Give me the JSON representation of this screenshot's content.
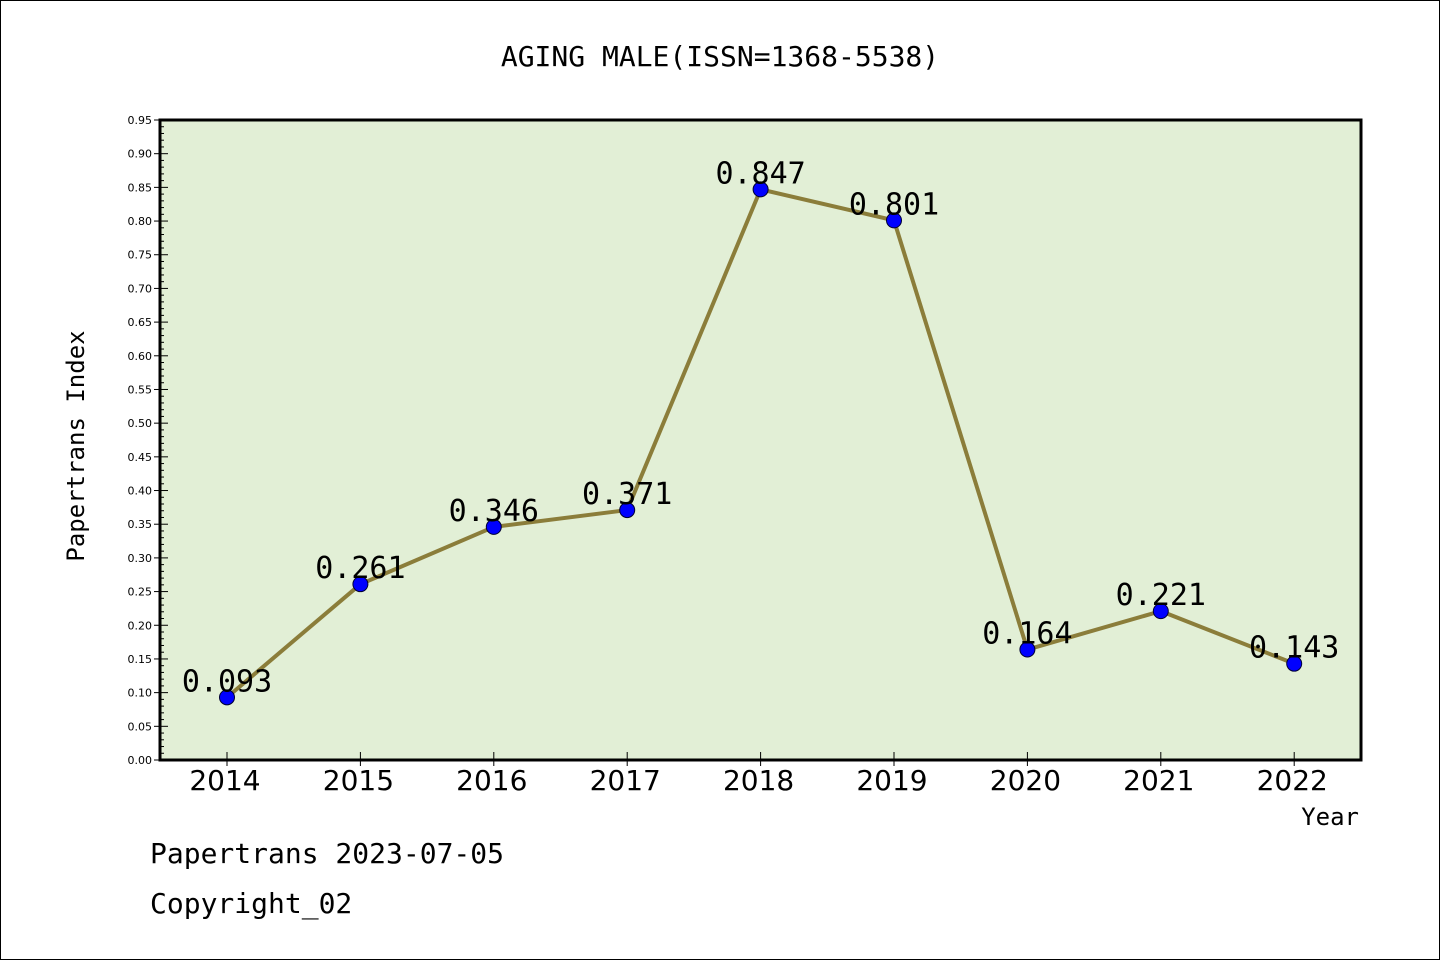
{
  "chart_data": {
    "type": "line",
    "title": "AGING MALE(ISSN=1368-5538)",
    "xlabel": "Year",
    "ylabel": "Papertrans Index",
    "ylim": [
      0,
      0.95
    ],
    "grid": false,
    "categories": [
      "2014",
      "2015",
      "2016",
      "2017",
      "2018",
      "2019",
      "2020",
      "2021",
      "2022"
    ],
    "series": [
      {
        "values": [
          0.093,
          0.261,
          0.346,
          0.371,
          0.847,
          0.801,
          0.164,
          0.221,
          0.143
        ],
        "labels": [
          "0.093",
          "0.261",
          "0.346",
          "0.371",
          "0.847",
          "0.801",
          "0.164",
          "0.221",
          "0.143"
        ]
      }
    ],
    "yticks": [
      "0.00",
      "0.05",
      "0.10",
      "0.15",
      "0.20",
      "0.25",
      "0.30",
      "0.35",
      "0.40",
      "0.45",
      "0.50",
      "0.55",
      "0.60",
      "0.65",
      "0.70",
      "0.75",
      "0.80",
      "0.85",
      "0.90",
      "0.95"
    ],
    "colors": {
      "plot_bg": "#e2efd6",
      "line": "#8b7d3a",
      "marker": "#0000ff"
    }
  },
  "footer": {
    "line1": "Papertrans 2023-07-05",
    "line2": "Copyright_02"
  }
}
